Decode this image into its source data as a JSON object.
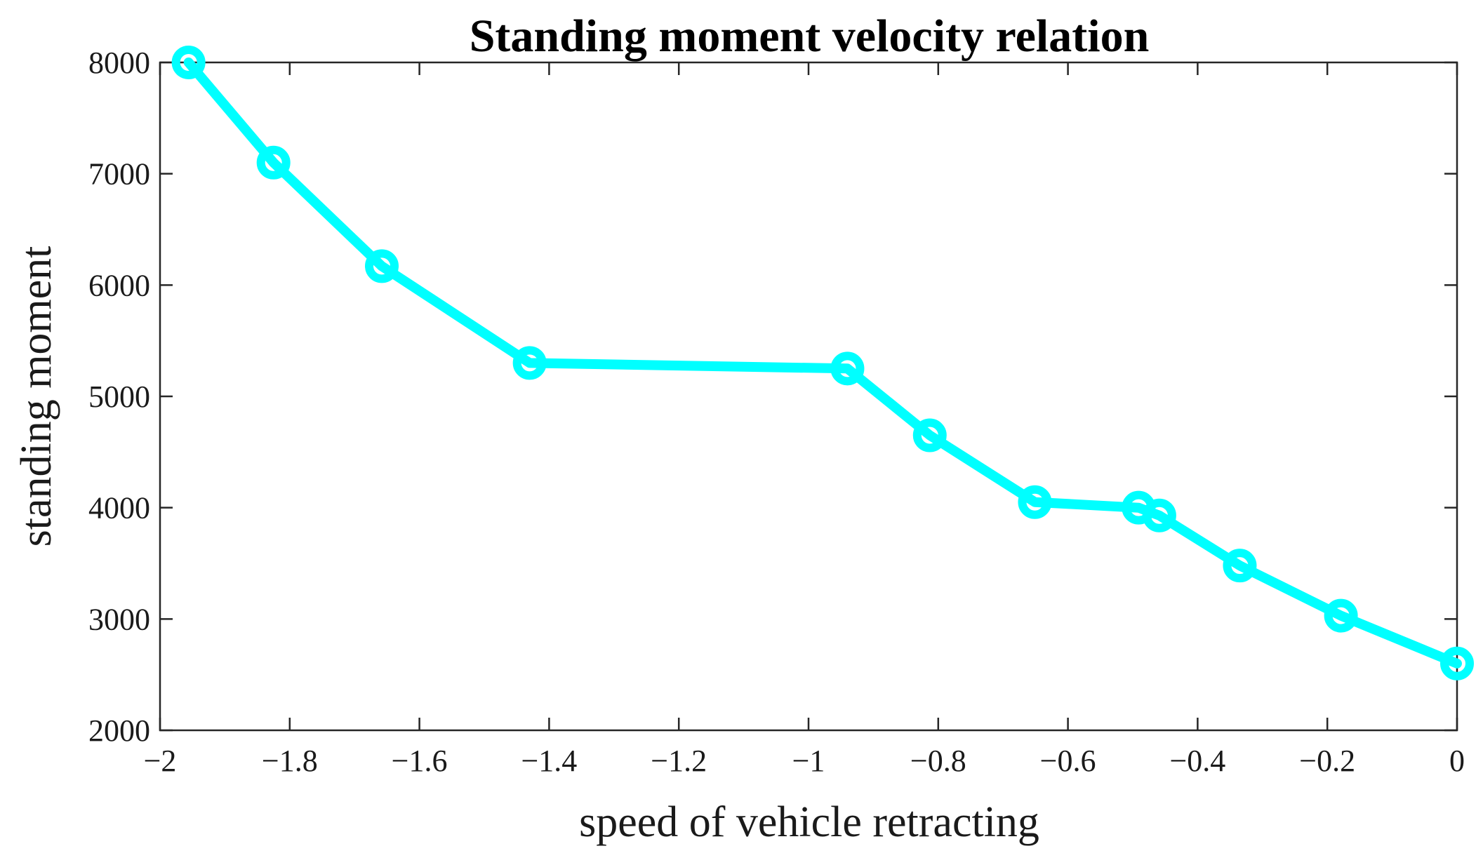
{
  "chart_data": {
    "type": "line",
    "title": "Standing moment velocity relation",
    "xlabel": "speed of vehicle retracting",
    "ylabel": "standing moment",
    "xlim": [
      -2,
      0
    ],
    "ylim": [
      2000,
      8000
    ],
    "xticks": [
      -2,
      -1.8,
      -1.6,
      -1.4,
      -1.2,
      -1,
      -0.8,
      -0.6,
      -0.4,
      -0.2,
      0
    ],
    "xtick_labels": [
      "−2",
      "−1.8",
      "−1.6",
      "−1.4",
      "−1.2",
      "−1",
      "−0.8",
      "−0.6",
      "−0.4",
      "−0.2",
      "0"
    ],
    "yticks": [
      2000,
      3000,
      4000,
      5000,
      6000,
      7000,
      8000
    ],
    "ytick_labels": [
      "2000",
      "3000",
      "4000",
      "5000",
      "6000",
      "7000",
      "8000"
    ],
    "grid": false,
    "series": [
      {
        "name": "standing moment",
        "color": "#00ffff",
        "marker": "circle",
        "x": [
          -1.956,
          -1.825,
          -1.658,
          -1.43,
          -0.94,
          -0.813,
          -0.651,
          -0.491,
          -0.459,
          -0.335,
          -0.179,
          0.0
        ],
        "y": [
          8000,
          7100,
          6170,
          5300,
          5250,
          4650,
          4050,
          4000,
          3930,
          3480,
          3030,
          2600
        ]
      }
    ]
  }
}
